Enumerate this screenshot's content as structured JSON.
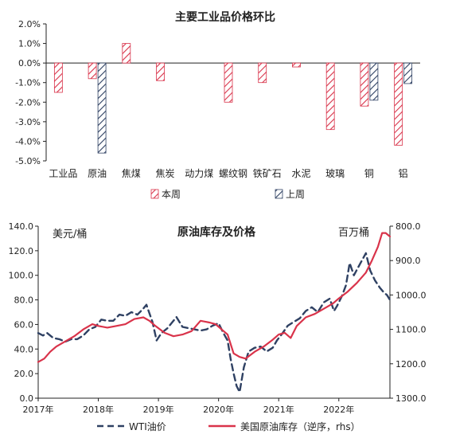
{
  "chart_data": [
    {
      "type": "bar",
      "title": "主要工业品价格环比",
      "categories": [
        "工业品",
        "原油",
        "焦煤",
        "焦炭",
        "动力煤",
        "螺纹钢",
        "铁矿石",
        "水泥",
        "玻璃",
        "铜",
        "铝"
      ],
      "series": [
        {
          "name": "本周",
          "values": [
            -1.5,
            -0.8,
            1.0,
            -0.9,
            null,
            -2.0,
            -1.0,
            -0.2,
            -3.4,
            -2.2,
            -4.2
          ]
        },
        {
          "name": "上周",
          "values": [
            null,
            -4.6,
            null,
            null,
            null,
            null,
            null,
            null,
            null,
            -1.9,
            -1.05
          ]
        }
      ],
      "ylim": [
        -5.0,
        2.0
      ],
      "yticks": [
        "2.0%",
        "1.0%",
        "0.0%",
        "-1.0%",
        "-2.0%",
        "-3.0%",
        "-4.0%",
        "-5.0%"
      ],
      "colors": {
        "本周": "#d9334a",
        "上周": "#2f4163"
      },
      "legend": "bottom",
      "grid": false
    },
    {
      "type": "line",
      "title": "原油库存及价格",
      "left_unit": "美元/桶",
      "right_unit": "百万桶",
      "xticks": [
        "2017年",
        "2018年",
        "2019年",
        "2020年",
        "2021年",
        "2022年"
      ],
      "yticks_left": [
        "0.0",
        "20.0",
        "40.0",
        "60.0",
        "80.0",
        "100.0",
        "120.0",
        "140.0"
      ],
      "yticks_right": [
        "800.0",
        "900.0",
        "1000.0",
        "1100.0",
        "1200.0",
        "1300.0"
      ],
      "ylim_left": [
        0,
        140
      ],
      "ylim_right_inverted": [
        800,
        1300
      ],
      "xlim": [
        2017.0,
        2022.85
      ],
      "legend": "bottom",
      "grid": false,
      "series": [
        {
          "name": "WTI油价",
          "axis": "left",
          "style": "dashed",
          "color": "#2f4163",
          "x": [
            2017.0,
            2017.08,
            2017.15,
            2017.25,
            2017.35,
            2017.45,
            2017.55,
            2017.65,
            2017.75,
            2017.85,
            2017.95,
            2018.05,
            2018.15,
            2018.25,
            2018.35,
            2018.45,
            2018.55,
            2018.65,
            2018.75,
            2018.8,
            2018.9,
            2018.97,
            2019.05,
            2019.15,
            2019.25,
            2019.3,
            2019.4,
            2019.5,
            2019.6,
            2019.7,
            2019.8,
            2019.9,
            2020.0,
            2020.08,
            2020.15,
            2020.2,
            2020.25,
            2020.3,
            2020.35,
            2020.42,
            2020.5,
            2020.6,
            2020.7,
            2020.8,
            2020.9,
            2020.97,
            2021.05,
            2021.15,
            2021.25,
            2021.35,
            2021.45,
            2021.55,
            2021.65,
            2021.75,
            2021.85,
            2021.92,
            2021.97,
            2022.05,
            2022.12,
            2022.18,
            2022.25,
            2022.35,
            2022.45,
            2022.52,
            2022.6,
            2022.68,
            2022.75,
            2022.8,
            2022.85
          ],
          "y": [
            53,
            51,
            53,
            49,
            48,
            46,
            48,
            48,
            51,
            56,
            58,
            64,
            63,
            63,
            68,
            67,
            70,
            68,
            73,
            76,
            62,
            47,
            53,
            57,
            63,
            66,
            58,
            57,
            56,
            55,
            56,
            59,
            61,
            53,
            47,
            32,
            20,
            10,
            5,
            25,
            38,
            41,
            42,
            38,
            41,
            47,
            52,
            59,
            62,
            65,
            71,
            74,
            70,
            78,
            81,
            71,
            75,
            83,
            92,
            110,
            100,
            109,
            118,
            104,
            96,
            90,
            86,
            84,
            80
          ]
        },
        {
          "name": "美国原油库存（逆序，rhs）",
          "axis": "right",
          "style": "solid",
          "color": "#d9334a",
          "x": [
            2017.0,
            2017.1,
            2017.2,
            2017.3,
            2017.45,
            2017.6,
            2017.75,
            2017.9,
            2018.0,
            2018.15,
            2018.3,
            2018.45,
            2018.6,
            2018.75,
            2018.85,
            2018.95,
            2019.1,
            2019.25,
            2019.4,
            2019.55,
            2019.7,
            2019.85,
            2019.95,
            2020.05,
            2020.15,
            2020.25,
            2020.35,
            2020.45,
            2020.6,
            2020.75,
            2020.9,
            2021.0,
            2021.1,
            2021.2,
            2021.3,
            2021.45,
            2021.6,
            2021.75,
            2021.9,
            2022.0,
            2022.15,
            2022.3,
            2022.45,
            2022.55,
            2022.65,
            2022.72,
            2022.78,
            2022.85
          ],
          "y": [
            1195,
            1185,
            1165,
            1150,
            1135,
            1120,
            1100,
            1085,
            1090,
            1095,
            1090,
            1085,
            1070,
            1065,
            1075,
            1090,
            1110,
            1120,
            1115,
            1105,
            1075,
            1080,
            1085,
            1100,
            1115,
            1170,
            1180,
            1185,
            1165,
            1150,
            1130,
            1115,
            1110,
            1125,
            1090,
            1065,
            1055,
            1040,
            1025,
            1010,
            990,
            965,
            935,
            900,
            860,
            820,
            820,
            830
          ]
        }
      ]
    }
  ]
}
